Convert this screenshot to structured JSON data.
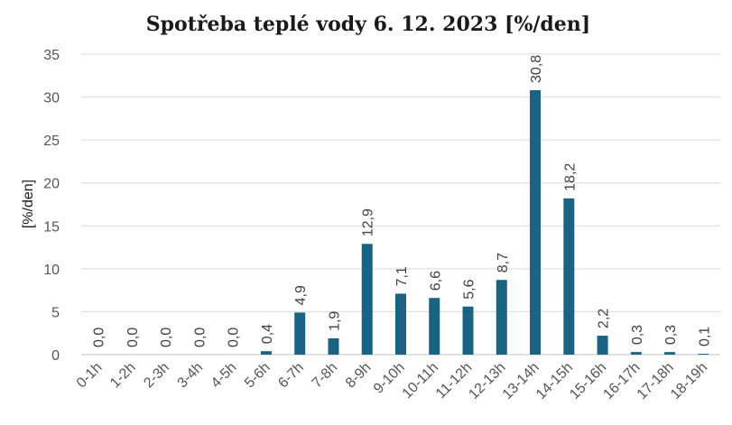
{
  "chart_data": {
    "type": "bar",
    "title": "Spotřeba teplé vody 6. 12. 2023 [%/den]",
    "ylabel": "[%/den]",
    "xlabel": "",
    "ylim": [
      0,
      35
    ],
    "yticks": [
      0,
      5,
      10,
      15,
      20,
      25,
      30,
      35
    ],
    "grid": true,
    "bar_color": "#1a6384",
    "categories": [
      "0-1h",
      "1-2h",
      "2-3h",
      "3-4h",
      "4-5h",
      "5-6h",
      "6-7h",
      "7-8h",
      "8-9h",
      "9-10h",
      "10-11h",
      "11-12h",
      "12-13h",
      "13-14h",
      "14-15h",
      "15-16h",
      "16-17h",
      "17-18h",
      "18-19h"
    ],
    "values": [
      0.0,
      0.0,
      0.0,
      0.0,
      0.0,
      0.4,
      4.9,
      1.9,
      12.9,
      7.1,
      6.6,
      5.6,
      8.7,
      30.8,
      18.2,
      2.2,
      0.3,
      0.3,
      0.1
    ],
    "value_labels": [
      "0,0",
      "0,0",
      "0,0",
      "0,0",
      "0,0",
      "0,4",
      "4,9",
      "1,9",
      "12,9",
      "7,1",
      "6,6",
      "5,6",
      "8,7",
      "30,8",
      "18,2",
      "2,2",
      "0,3",
      "0,3",
      "0,1"
    ]
  }
}
